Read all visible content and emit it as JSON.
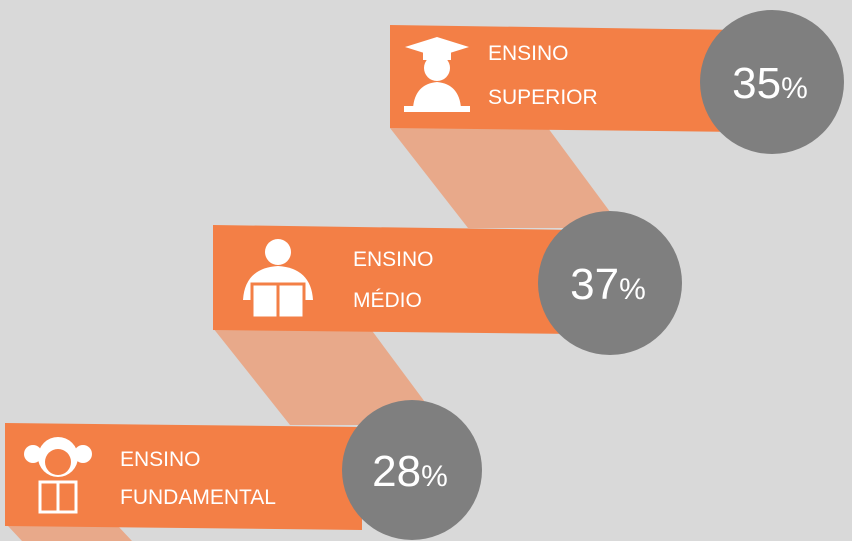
{
  "steps": [
    {
      "title": [
        "ENSINO",
        "SUPERIOR"
      ],
      "value": 35,
      "unit": "%"
    },
    {
      "title": [
        "ENSINO",
        "MÉDIO"
      ],
      "value": 37,
      "unit": "%"
    },
    {
      "title": [
        "ENSINO",
        "FUNDAMENTAL"
      ],
      "value": 28,
      "unit": "%"
    }
  ]
}
